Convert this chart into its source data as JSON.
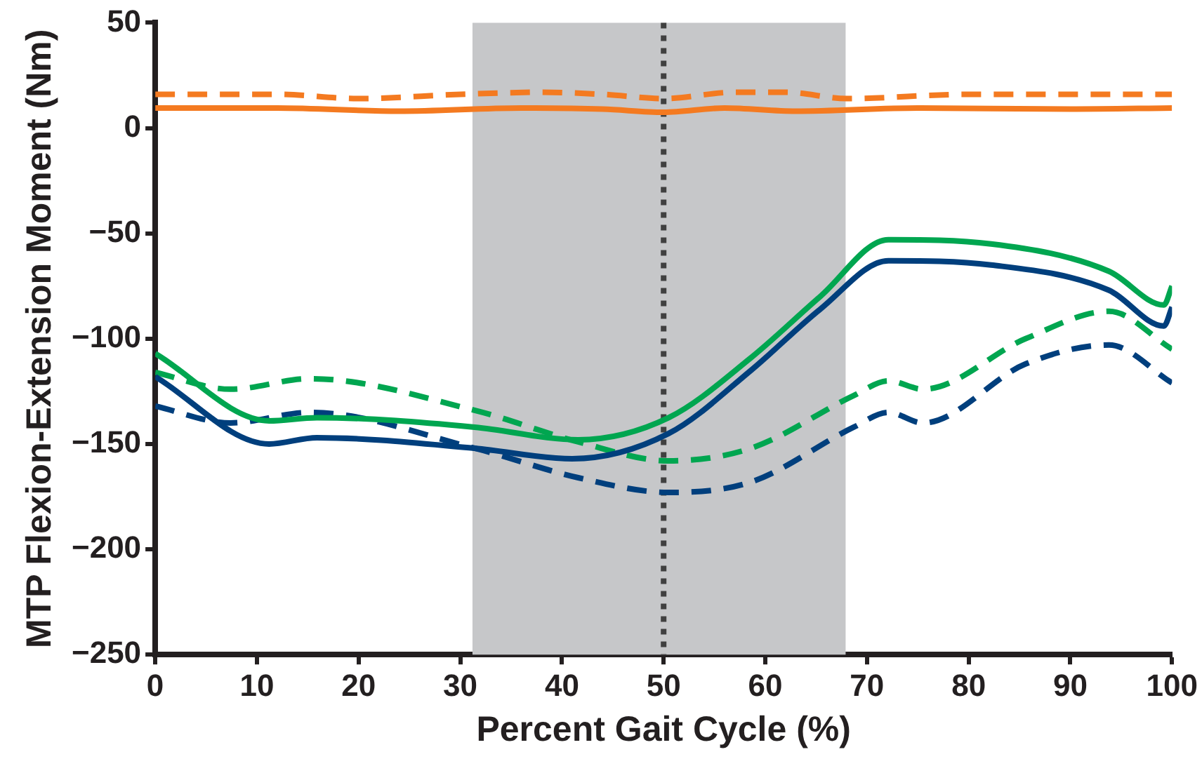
{
  "chart_data": {
    "type": "line",
    "xlabel": "Percent Gait Cycle (%)",
    "ylabel": "MTP Flexion-Extension Moment (Nm)",
    "xlim": [
      0,
      100
    ],
    "xticks": [
      0,
      10,
      20,
      30,
      40,
      50,
      60,
      70,
      80,
      90,
      100
    ],
    "ylim": [
      -250,
      50
    ],
    "yticks": [
      -250,
      -200,
      -150,
      -100,
      -50,
      0,
      50
    ],
    "grid": false,
    "legend": false,
    "marker": "none",
    "series": [
      {
        "color": "#f47a20",
        "line_style": "solid",
        "x": [
          0,
          12,
          24,
          36,
          44,
          50,
          56,
          63,
          75,
          90,
          100
        ],
        "values": [
          9.5,
          9.5,
          8,
          9.5,
          9,
          7.5,
          9.5,
          8,
          9.5,
          9,
          9.5
        ]
      },
      {
        "color": "#f47a20",
        "line_style": "dashed",
        "x": [
          0,
          12,
          20,
          30,
          38,
          44,
          50,
          57,
          62,
          68,
          80,
          100
        ],
        "values": [
          16,
          16,
          14,
          16,
          17,
          16,
          14,
          17,
          17,
          14,
          16,
          16
        ]
      },
      {
        "color": "#00a650",
        "line_style": "solid",
        "x": [
          0,
          11.2,
          15.9,
          31.4,
          41.6,
          50.5,
          58.6,
          65.4,
          72.1,
          82.2,
          93.8,
          99.2,
          100
        ],
        "values": [
          -107,
          -139,
          -137.5,
          -142,
          -148,
          -137.5,
          -109,
          -80,
          -53,
          -55,
          -68,
          -84,
          -75
        ]
      },
      {
        "color": "#003f7d",
        "line_style": "solid",
        "x": [
          0,
          11.2,
          15.9,
          31.4,
          41,
          50.5,
          58.6,
          65.4,
          72.1,
          82.2,
          93.8,
          99.2,
          100
        ],
        "values": [
          -118,
          -150,
          -147,
          -152,
          -157,
          -145,
          -115,
          -86,
          -63,
          -65,
          -77,
          -94,
          -85
        ]
      },
      {
        "color": "#00a650",
        "line_style": "dashed",
        "x": [
          0,
          7.4,
          15.2,
          31.4,
          41.6,
          50.5,
          58.6,
          68.7,
          72.1,
          75.5,
          85.6,
          93.8,
          100
        ],
        "values": [
          -116,
          -124,
          -119,
          -134,
          -149,
          -158,
          -152,
          -127,
          -120,
          -124,
          -100,
          -87,
          -105
        ]
      },
      {
        "color": "#003f7d",
        "line_style": "dashed",
        "x": [
          0,
          7.4,
          15.2,
          31.4,
          41.6,
          50.5,
          58.6,
          68.7,
          72.1,
          75.5,
          85.6,
          93.8,
          100
        ],
        "values": [
          -132,
          -140,
          -135,
          -152,
          -166,
          -173,
          -168,
          -142,
          -135,
          -140,
          -112,
          -103,
          -121
        ]
      }
    ],
    "bands": [
      {
        "axis": "x",
        "from": 31.2,
        "to": 67.9,
        "color": "#c6c7c9"
      }
    ],
    "ref_lines": [
      {
        "axis": "x",
        "value": 50,
        "color": "#404040",
        "line_style": "dotted"
      }
    ]
  }
}
